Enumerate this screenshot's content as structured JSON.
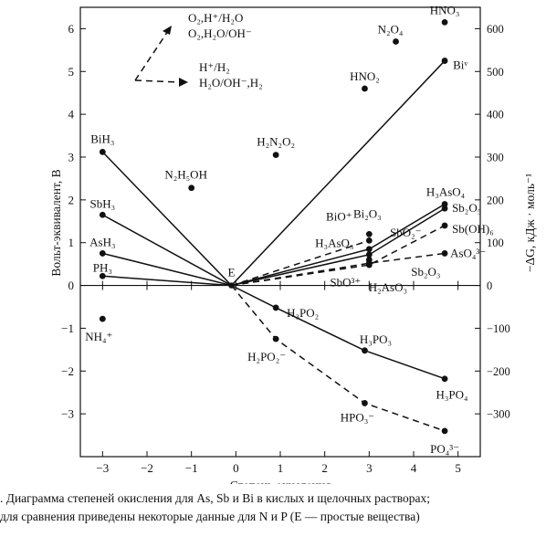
{
  "chart_data": {
    "type": "scatter",
    "xlabel": "Степень окисления",
    "ylabel_left": "Вольт-эквивалент, В",
    "ylabel_right": "−ΔG, кДж · моль⁻¹",
    "xlim": [
      -3.5,
      5.5
    ],
    "ylim": [
      -4,
      6.5
    ],
    "x_ticks": [
      -3,
      -2,
      -1,
      0,
      1,
      2,
      3,
      4,
      5
    ],
    "x_tick_labels": [
      "−3",
      "−2",
      "−1",
      "0",
      "1",
      "2",
      "3",
      "4",
      "5"
    ],
    "y_ticks": [
      -3,
      -2,
      -1,
      0,
      1,
      2,
      3,
      4,
      5,
      6
    ],
    "y_tick_labels": [
      "−3",
      "−2",
      "−1",
      "0",
      "1",
      "2",
      "3",
      "4",
      "5",
      "6"
    ],
    "right_ticks": [
      -300,
      -200,
      -100,
      0,
      100,
      200,
      300,
      400,
      500,
      600
    ],
    "right_tick_labels": [
      "−300",
      "−200",
      "−100",
      "0",
      "100",
      "200",
      "300",
      "400",
      "500",
      "600"
    ],
    "origin_label": "E",
    "legend": [
      {
        "style": "dashed",
        "lines": [
          "O₂,H⁺/H₂O",
          "O₂,H₂O/OH⁻"
        ]
      },
      {
        "style": "dashed",
        "lines": [
          "H⁺/H₂",
          "H₂O/OH⁻,H₂"
        ]
      }
    ],
    "points": [
      {
        "label": "BiH₃",
        "x": -3,
        "y": 3.12
      },
      {
        "label": "SbH₃",
        "x": -3,
        "y": 1.65
      },
      {
        "label": "AsH₃",
        "x": -3,
        "y": 0.75
      },
      {
        "label": "PH₃",
        "x": -3,
        "y": 0.22
      },
      {
        "label": "NH₄⁺",
        "x": -3,
        "y": -0.78
      },
      {
        "label": "N₂H₅OH",
        "x": -1,
        "y": 2.28
      },
      {
        "label": "H₂N₂O₂",
        "x": 0.9,
        "y": 3.05
      },
      {
        "label": "HNO₂",
        "x": 2.9,
        "y": 4.6
      },
      {
        "label": "N₂O₄",
        "x": 3.6,
        "y": 5.7
      },
      {
        "label": "HNO₃",
        "x": 4.7,
        "y": 6.15
      },
      {
        "label": "Biᵛ",
        "x": 4.7,
        "y": 5.25
      },
      {
        "label": "Bi₂O₃",
        "x": 3,
        "y": 1.2
      },
      {
        "label": "BiO⁺",
        "x": 3,
        "y": 1.05
      },
      {
        "label": "H₃AsO₃",
        "x": 3,
        "y": 0.85
      },
      {
        "label": "SbO₂⁻",
        "x": 3,
        "y": 0.72
      },
      {
        "label": "SbO³⁺",
        "x": 3,
        "y": 0.6
      },
      {
        "label": "H₂AsO₃⁻",
        "x": 3,
        "y": 0.52
      },
      {
        "label": "Sb₂O₃",
        "x": 3,
        "y": 0.48
      },
      {
        "label": "H₃AsO₄",
        "x": 4.7,
        "y": 1.9
      },
      {
        "label": "Sb₂O₅",
        "x": 4.7,
        "y": 1.8
      },
      {
        "label": "Sb(OH)₆",
        "x": 4.7,
        "y": 1.4
      },
      {
        "label": "AsO₄³⁻",
        "x": 4.7,
        "y": 0.75
      },
      {
        "label": "H₃PO₂",
        "x": 0.9,
        "y": -0.52
      },
      {
        "label": "H₂PO₂⁻",
        "x": 0.9,
        "y": -1.25
      },
      {
        "label": "H₃PO₃",
        "x": 2.9,
        "y": -1.52
      },
      {
        "label": "HPO₃⁻",
        "x": 2.9,
        "y": -2.75
      },
      {
        "label": "H₃PO₄",
        "x": 4.7,
        "y": -2.18
      },
      {
        "label": "PO₄³⁻",
        "x": 4.7,
        "y": -3.4
      }
    ],
    "series": [
      {
        "style": "solid",
        "x": [
          -3,
          -0.1,
          4.7
        ],
        "y": [
          3.12,
          0,
          5.25
        ]
      },
      {
        "style": "solid",
        "x": [
          -3,
          -0.1,
          3,
          4.7
        ],
        "y": [
          1.65,
          0,
          0.72,
          1.8
        ]
      },
      {
        "style": "solid",
        "x": [
          -3,
          -0.1,
          3,
          4.7
        ],
        "y": [
          0.75,
          0,
          0.85,
          1.9
        ]
      },
      {
        "style": "solid",
        "x": [
          -3,
          -0.1
        ],
        "y": [
          0.22,
          0
        ]
      },
      {
        "style": "solid",
        "x": [
          -0.1,
          0.9,
          2.9,
          4.7
        ],
        "y": [
          0,
          -0.52,
          -1.52,
          -2.18
        ]
      },
      {
        "style": "dashed",
        "x": [
          -0.1,
          3,
          4.7
        ],
        "y": [
          0,
          0.48,
          1.4
        ]
      },
      {
        "style": "dashed",
        "x": [
          -0.1,
          3,
          4.7
        ],
        "y": [
          0,
          0.52,
          0.75
        ]
      },
      {
        "style": "dashed",
        "x": [
          -0.1,
          3
        ],
        "y": [
          0,
          1.05
        ]
      },
      {
        "style": "dashed",
        "x": [
          -0.1,
          0.9,
          2.9,
          4.7
        ],
        "y": [
          0,
          -1.25,
          -2.75,
          -3.4
        ]
      }
    ]
  },
  "caption": {
    "line1": ". Диаграмма степеней окисления для As, Sb и Bi в кислых и щелочных растворах;",
    "line2": "для сравнения приведены  некоторые данные для N и P (E — простые вещества)"
  }
}
